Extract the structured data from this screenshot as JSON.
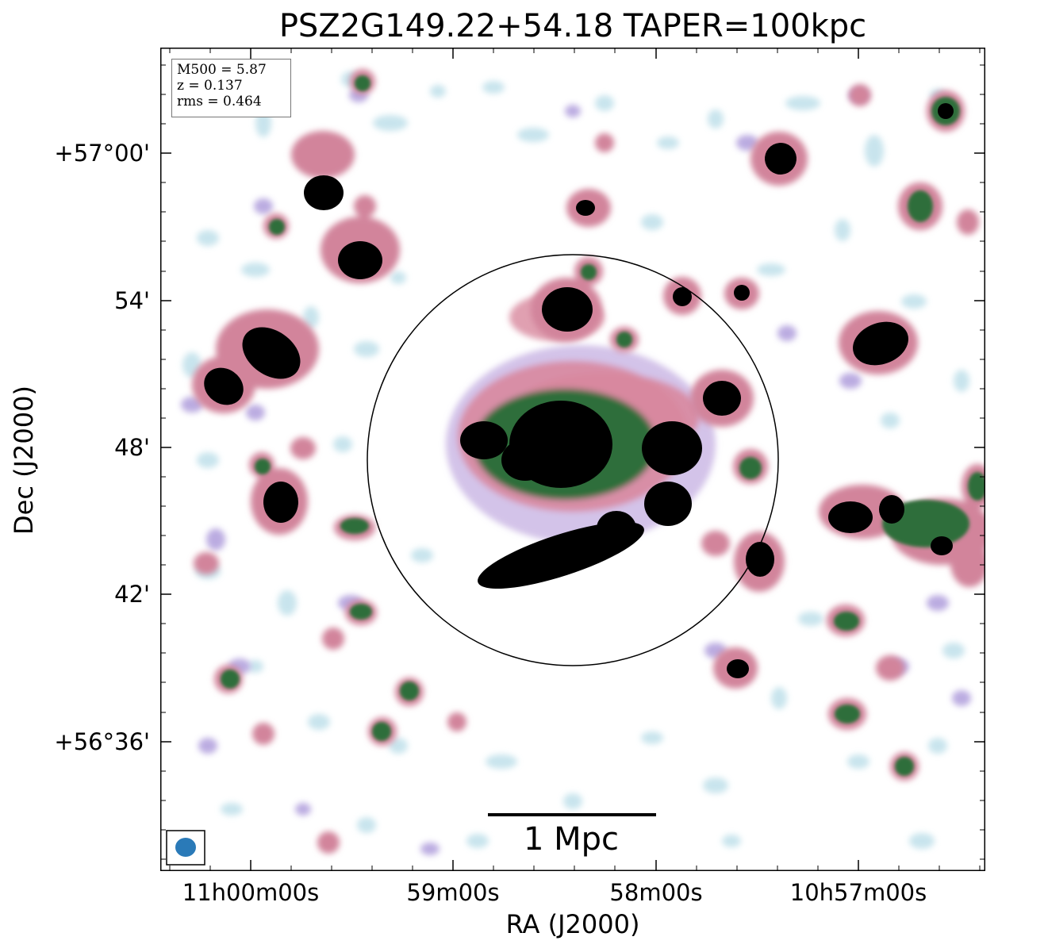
{
  "title": "PSZ2G149.22+54.18 TAPER=100kpc",
  "info": {
    "m500": "M500 = 5.87",
    "z": "z = 0.137",
    "rms": "rms = 0.464"
  },
  "axes": {
    "xlabel": "RA (J2000)",
    "ylabel": "Dec (J2000)",
    "xticks": [
      "11h00m00s",
      "59m00s",
      "58m00s",
      "10h57m00s"
    ],
    "yticks": [
      "+57°00'",
      "54'",
      "48'",
      "42'",
      "+56°36'"
    ]
  },
  "scale_bar": {
    "label": "1 Mpc"
  },
  "colors": {
    "faint": "#b8dce8",
    "lavender": "#b7a6e0",
    "pink": "#d2849b",
    "green": "#2e6e3a",
    "core": "#000000",
    "beam": "#2a7ab8"
  }
}
